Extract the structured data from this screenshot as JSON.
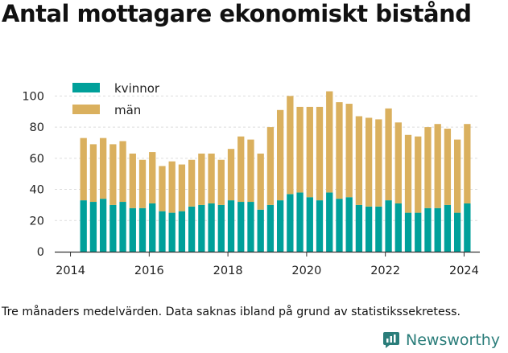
{
  "title": "Antal mottagare ekonomiskt bistånd",
  "footnote": "Tre månaders medelvärden. Data saknas ibland på grund av statistikssekretess.",
  "brand": {
    "name": "Newsworthy",
    "icon": "newsworthy-logo-icon",
    "color": "#2a7d7a"
  },
  "chart_data": {
    "type": "bar",
    "stacked": true,
    "title": "Antal mottagare ekonomiskt bistånd",
    "xlabel": "",
    "ylabel": "",
    "ylim": [
      0,
      110
    ],
    "yticks": [
      0,
      20,
      40,
      60,
      80,
      100
    ],
    "xlim": [
      2013.6,
      2024.4
    ],
    "xticks": [
      2014,
      2016,
      2018,
      2020,
      2022,
      2024
    ],
    "grid": {
      "x": false,
      "y": true
    },
    "legend": {
      "position": "top-left"
    },
    "x": [
      2014.33,
      2014.58,
      2014.83,
      2015.08,
      2015.33,
      2015.58,
      2015.83,
      2016.08,
      2016.33,
      2016.58,
      2016.83,
      2017.08,
      2017.33,
      2017.58,
      2017.83,
      2018.08,
      2018.33,
      2018.58,
      2018.83,
      2019.08,
      2019.33,
      2019.58,
      2019.83,
      2020.08,
      2020.33,
      2020.58,
      2020.83,
      2021.08,
      2021.33,
      2021.58,
      2021.83,
      2022.08,
      2022.33,
      2022.58,
      2022.83,
      2023.08,
      2023.33,
      2023.58,
      2023.83,
      2024.08
    ],
    "series": [
      {
        "name": "kvinnor",
        "color": "#00a09a",
        "values": [
          33,
          32,
          34,
          30,
          32,
          28,
          28,
          31,
          26,
          25,
          26,
          29,
          30,
          31,
          30,
          33,
          32,
          32,
          27,
          30,
          33,
          37,
          38,
          35,
          33,
          38,
          34,
          35,
          30,
          29,
          29,
          33,
          31,
          25,
          25,
          28,
          28,
          30,
          25,
          31
        ]
      },
      {
        "name": "män",
        "color": "#dab05e",
        "values": [
          40,
          37,
          39,
          39,
          39,
          35,
          31,
          33,
          29,
          33,
          30,
          30,
          33,
          32,
          29,
          33,
          42,
          40,
          36,
          50,
          58,
          63,
          55,
          58,
          60,
          65,
          62,
          60,
          57,
          57,
          56,
          59,
          52,
          50,
          49,
          52,
          54,
          49,
          47,
          51
        ]
      }
    ]
  }
}
